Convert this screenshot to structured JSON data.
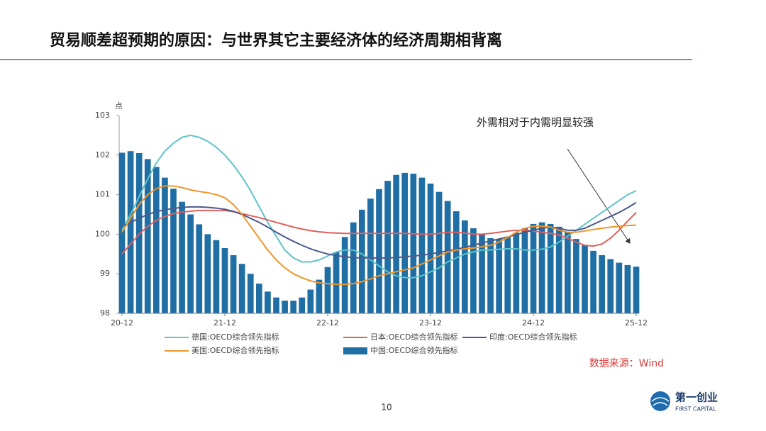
{
  "title": "贸易顺差超预期的原因：与世界其它主要经济体的经济周期相背离",
  "page_number": "10",
  "logo": {
    "name": "第一创业",
    "english": "FIRST CAPITAL"
  },
  "chart_data": {
    "type": "combo",
    "y_label": "点",
    "annotation": "外需相对于内需明显较强",
    "source": "数据来源：Wind",
    "categories": [
      "20-12",
      null,
      null,
      null,
      null,
      null,
      null,
      null,
      null,
      null,
      null,
      null,
      "21-12",
      null,
      null,
      null,
      null,
      null,
      null,
      null,
      null,
      null,
      null,
      null,
      "22-12",
      null,
      null,
      null,
      null,
      null,
      null,
      null,
      null,
      null,
      null,
      null,
      "23-12",
      null,
      null,
      null,
      null,
      null,
      null,
      null,
      null,
      null,
      null,
      null,
      "24-12",
      null,
      null,
      null,
      null,
      null,
      null,
      null,
      null,
      null,
      null,
      null,
      "25-12"
    ],
    "ylim": [
      98,
      103
    ],
    "yticks": [
      98,
      99,
      100,
      101,
      102,
      103
    ],
    "series": [
      {
        "name": "德国:OECD综合领先指标",
        "type": "line",
        "color": "#5fc4c8",
        "values": [
          100.1,
          100.5,
          100.95,
          101.4,
          101.8,
          102.1,
          102.3,
          102.45,
          102.5,
          102.45,
          102.35,
          102.2,
          102.0,
          101.75,
          101.45,
          101.1,
          100.7,
          100.3,
          99.95,
          99.6,
          99.4,
          99.3,
          99.3,
          99.35,
          99.45,
          99.55,
          99.6,
          99.6,
          99.5,
          99.35,
          99.2,
          99.05,
          98.95,
          98.9,
          98.9,
          98.95,
          99.05,
          99.15,
          99.3,
          99.4,
          99.5,
          99.55,
          99.6,
          99.6,
          99.62,
          99.63,
          99.63,
          99.6,
          99.6,
          99.62,
          99.68,
          99.8,
          99.95,
          100.1,
          100.25,
          100.4,
          100.55,
          100.7,
          100.85,
          101.0,
          101.1
        ]
      },
      {
        "name": "日本:OECD综合领先指标",
        "type": "line",
        "color": "#e0605e",
        "values": [
          99.5,
          99.75,
          100.0,
          100.2,
          100.35,
          100.45,
          100.52,
          100.56,
          100.58,
          100.6,
          100.6,
          100.6,
          100.6,
          100.57,
          100.52,
          100.47,
          100.42,
          100.36,
          100.3,
          100.24,
          100.18,
          100.13,
          100.09,
          100.06,
          100.04,
          100.03,
          100.02,
          100.02,
          100.02,
          100.02,
          100.02,
          100.02,
          100.02,
          100.02,
          100.01,
          100.0,
          100.0,
          100.02,
          100.05,
          100.05,
          100.03,
          100.0,
          100.0,
          100.02,
          100.05,
          100.08,
          100.1,
          100.1,
          100.08,
          100.05,
          100.02,
          99.98,
          99.9,
          99.8,
          99.72,
          99.7,
          99.75,
          99.9,
          100.1,
          100.33,
          100.55
        ]
      },
      {
        "name": "印度:OECD综合领先指标",
        "type": "line",
        "color": "#4a5a8c",
        "values": [
          100.2,
          100.3,
          100.4,
          100.5,
          100.57,
          100.62,
          100.65,
          100.68,
          100.69,
          100.69,
          100.68,
          100.66,
          100.63,
          100.58,
          100.5,
          100.4,
          100.3,
          100.18,
          100.05,
          99.93,
          99.82,
          99.72,
          99.63,
          99.56,
          99.5,
          99.46,
          99.43,
          99.41,
          99.4,
          99.4,
          99.4,
          99.4,
          99.41,
          99.43,
          99.45,
          99.47,
          99.5,
          99.54,
          99.58,
          99.62,
          99.67,
          99.72,
          99.78,
          99.83,
          99.88,
          99.93,
          99.99,
          100.05,
          100.1,
          100.15,
          100.18,
          100.15,
          100.1,
          100.1,
          100.15,
          100.25,
          100.35,
          100.45,
          100.55,
          100.67,
          100.8
        ]
      },
      {
        "name": "美国:OECD综合领先指标",
        "type": "line",
        "color": "#f0962a",
        "values": [
          100.05,
          100.4,
          100.75,
          101.0,
          101.15,
          101.22,
          101.22,
          101.18,
          101.12,
          101.08,
          101.05,
          101.0,
          100.92,
          100.75,
          100.5,
          100.2,
          99.9,
          99.6,
          99.35,
          99.15,
          99.0,
          98.9,
          98.82,
          98.77,
          98.75,
          98.73,
          98.73,
          98.75,
          98.8,
          98.87,
          98.95,
          99.0,
          99.05,
          99.1,
          99.15,
          99.25,
          99.35,
          99.45,
          99.55,
          99.6,
          99.63,
          99.65,
          99.68,
          99.72,
          99.8,
          99.92,
          100.05,
          100.15,
          100.2,
          100.2,
          100.18,
          100.1,
          100.05,
          100.05,
          100.08,
          100.12,
          100.15,
          100.18,
          100.2,
          100.22,
          100.23
        ]
      },
      {
        "name": "中国:OECD综合领先指标",
        "type": "bar",
        "color": "#1f6fa5",
        "values": [
          102.06,
          102.1,
          102.05,
          101.9,
          101.7,
          101.43,
          101.15,
          100.82,
          100.5,
          100.25,
          100.0,
          99.85,
          99.65,
          99.47,
          99.25,
          99.0,
          98.75,
          98.55,
          98.4,
          98.32,
          98.32,
          98.4,
          98.6,
          98.85,
          99.17,
          99.55,
          99.93,
          100.3,
          100.62,
          100.9,
          101.14,
          101.35,
          101.5,
          101.55,
          101.53,
          101.43,
          101.28,
          101.07,
          100.84,
          100.58,
          100.35,
          100.15,
          99.99,
          99.9,
          99.88,
          99.93,
          100.04,
          100.15,
          100.26,
          100.3,
          100.26,
          100.19,
          100.06,
          99.88,
          99.72,
          99.58,
          99.47,
          99.37,
          99.28,
          99.22,
          99.18
        ]
      }
    ]
  }
}
